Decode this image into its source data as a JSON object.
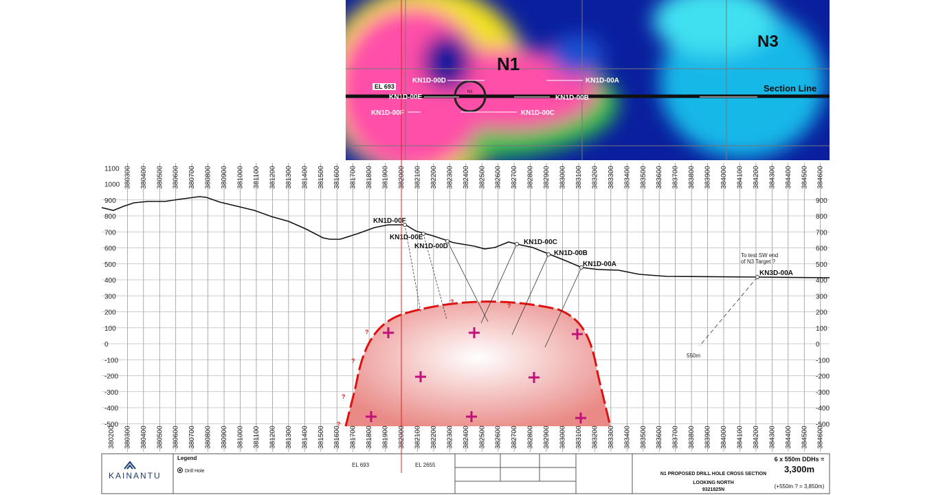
{
  "map": {
    "labels": {
      "n1": "N1",
      "n3": "N3",
      "el": "EL 693",
      "n1_small": "N1",
      "section_line": "Section Line"
    },
    "holes": [
      "KN1D-00D",
      "KN1D-00A",
      "KN1D-00E",
      "KN1D-00B",
      "KN1D-00F",
      "KN1D-00C"
    ]
  },
  "section": {
    "eastings_top": [
      380300,
      380400,
      380500,
      380600,
      380700,
      380800,
      380900,
      381000,
      381100,
      381200,
      381300,
      381400,
      381500,
      381600,
      381700,
      381800,
      381900,
      382000,
      382100,
      382200,
      382300,
      382400,
      382500,
      382600,
      382700,
      382800,
      382900,
      383000,
      383100,
      383200,
      383300,
      383400,
      383500,
      383600,
      383700,
      383800,
      383900,
      384000,
      384100,
      384200,
      384300,
      384400,
      384500,
      384600
    ],
    "eastings_bottom": [
      380200,
      380300,
      380400,
      380500,
      380600,
      380700,
      380800,
      380900,
      381000,
      381100,
      381200,
      381300,
      381400,
      381500,
      381600,
      381700,
      381800,
      381900,
      382000,
      382100,
      382200,
      382300,
      382400,
      382500,
      382600,
      382700,
      382800,
      382900,
      383000,
      383100,
      383200,
      383300,
      383400,
      383500,
      383600,
      383700,
      383800,
      383900,
      384000,
      384100,
      384200,
      384300,
      384400,
      384500,
      384600
    ],
    "elevations_left": [
      1100,
      1000,
      900,
      800,
      700,
      600,
      500,
      400,
      300,
      200,
      100,
      0,
      -100,
      -200,
      -300,
      -400,
      -500
    ],
    "elevations_right": [
      900,
      800,
      700,
      600,
      500,
      400,
      300,
      200,
      100,
      0,
      -100,
      -200,
      -300,
      -400,
      -500
    ],
    "holes": [
      "KN1D-00F",
      "KN1D-00E",
      "KN1D-00D",
      "KN1D-00C",
      "KN1D-00B",
      "KN1D-00A",
      "KN3D-00A"
    ],
    "annotation": [
      "To test SW end",
      "of N3 Target ?"
    ],
    "length_label": "550m",
    "target_query": "?"
  },
  "title_block": {
    "company": "KAINANTU",
    "legend": "Legend",
    "legend_item": "Drill Hole",
    "tenement_1": "EL 693",
    "tenement_2": "EL 2655",
    "title": "N1 PROPOSED DRILL HOLE CROSS SECTION",
    "direction": "LOOKING NORTH",
    "northing": "9321825N",
    "summary": "6 x 550m DDHs =",
    "total": "3,300m",
    "extra": "(+550m ? = 3,850m)"
  }
}
